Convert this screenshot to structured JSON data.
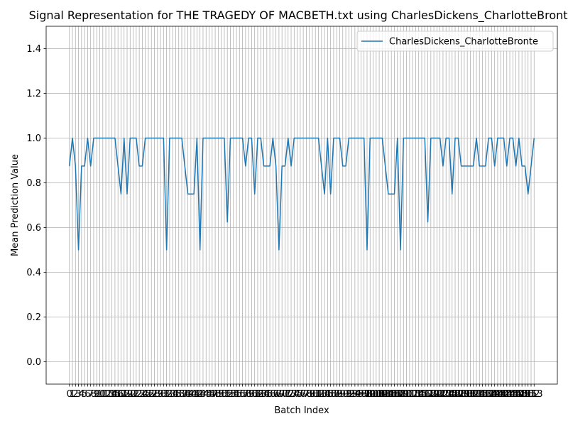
{
  "chart_data": {
    "type": "line",
    "title": "Signal Representation for THE TRAGEDY OF MACBETH.txt using CharlesDickens_CharlotteBronte",
    "xlabel": "Batch Index",
    "ylabel": "Mean Prediction Value",
    "x": [
      0,
      1,
      2,
      3,
      4,
      5,
      6,
      7,
      8,
      9,
      10,
      11,
      12,
      13,
      14,
      15,
      16,
      17,
      18,
      19,
      20,
      21,
      22,
      23,
      24,
      25,
      26,
      27,
      28,
      29,
      30,
      31,
      32,
      33,
      34,
      35,
      36,
      37,
      38,
      39,
      40,
      41,
      42,
      43,
      44,
      45,
      46,
      47,
      48,
      49,
      50,
      51,
      52,
      53,
      54,
      55,
      56,
      57,
      58,
      59,
      60,
      61,
      62,
      63,
      64,
      65,
      66,
      67,
      68,
      69,
      70,
      71,
      72,
      73,
      74,
      75,
      76,
      77,
      78,
      79,
      80,
      81,
      82,
      83,
      84,
      85,
      86,
      87,
      88,
      89,
      90,
      91,
      92,
      93,
      94,
      95,
      96,
      97,
      98,
      99,
      100,
      101,
      102,
      103,
      104,
      105,
      106,
      107,
      108,
      109,
      110,
      111,
      112,
      113,
      114,
      115,
      116,
      117,
      118,
      119,
      120,
      121,
      122,
      123,
      124,
      125,
      126,
      127,
      128,
      129,
      130,
      131,
      132,
      133,
      134,
      135,
      136,
      137,
      138,
      139,
      140,
      141,
      142,
      143,
      144,
      145,
      146,
      147,
      148,
      149,
      150,
      151,
      152,
      153
    ],
    "series": [
      {
        "name": "CharlesDickens_CharlotteBronte",
        "color": "#1f77b4",
        "values": [
          0.875,
          1,
          0.875,
          0.5,
          0.875,
          0.875,
          1,
          0.875,
          1,
          1,
          1,
          1,
          1,
          1,
          1,
          1,
          0.875,
          0.75,
          1,
          0.75,
          1,
          1,
          1,
          0.875,
          0.875,
          1,
          1,
          1,
          1,
          1,
          1,
          1,
          0.5,
          1,
          1,
          1,
          1,
          1,
          0.875,
          0.75,
          0.75,
          0.75,
          1,
          0.5,
          1,
          1,
          1,
          1,
          1,
          1,
          1,
          1,
          0.625,
          1,
          1,
          1,
          1,
          1,
          0.875,
          1,
          1,
          0.75,
          1,
          1,
          0.875,
          0.875,
          0.875,
          1,
          0.875,
          0.5,
          0.875,
          0.875,
          1,
          0.875,
          1,
          1,
          1,
          1,
          1,
          1,
          1,
          1,
          1,
          0.875,
          0.75,
          1,
          0.75,
          1,
          1,
          1,
          0.875,
          0.875,
          1,
          1,
          1,
          1,
          1,
          1,
          0.5,
          1,
          1,
          1,
          1,
          1,
          0.875,
          0.75,
          0.75,
          0.75,
          1,
          0.5,
          1,
          1,
          1,
          1,
          1,
          1,
          1,
          1,
          0.625,
          1,
          1,
          1,
          1,
          0.875,
          1,
          1,
          0.75,
          1,
          1,
          0.875,
          0.875,
          0.875,
          0.875,
          0.875,
          1,
          0.875,
          0.875,
          0.875,
          1,
          1,
          0.875,
          1,
          1,
          1,
          0.875,
          1,
          1,
          0.875,
          1,
          0.875,
          0.875,
          0.75,
          0.875,
          1
        ]
      }
    ],
    "xlim": [
      -7.65,
      160.65
    ],
    "xticks": [
      0,
      1,
      2,
      3,
      4,
      5,
      6,
      7,
      8,
      9,
      10,
      11,
      12,
      13,
      14,
      15,
      16,
      17,
      18,
      19,
      20,
      21,
      22,
      23,
      24,
      25,
      26,
      27,
      28,
      29,
      30,
      31,
      32,
      33,
      34,
      35,
      36,
      37,
      38,
      39,
      40,
      41,
      42,
      43,
      44,
      45,
      46,
      47,
      48,
      49,
      50,
      51,
      52,
      53,
      54,
      55,
      56,
      57,
      58,
      59,
      60,
      61,
      62,
      63,
      64,
      65,
      66,
      67,
      68,
      69,
      70,
      71,
      72,
      73,
      74,
      75,
      76,
      77,
      78,
      79,
      80,
      81,
      82,
      83,
      84,
      85,
      86,
      87,
      88,
      89,
      90,
      91,
      92,
      93,
      94,
      95,
      96,
      97,
      98,
      99,
      100,
      101,
      102,
      103,
      104,
      105,
      106,
      107,
      108,
      109,
      110,
      111,
      112,
      113,
      114,
      115,
      116,
      117,
      118,
      119,
      120,
      121,
      122,
      123,
      124,
      125,
      126,
      127,
      128,
      129,
      130,
      131,
      132,
      133,
      134,
      135,
      136,
      137,
      138,
      139,
      140,
      141,
      142,
      143,
      144,
      145,
      146,
      147,
      148,
      149,
      150,
      151,
      152,
      153
    ],
    "ylim": [
      -0.1,
      1.5
    ],
    "yticks": [
      {
        "value": 0,
        "label": "0.0"
      },
      0.2,
      0.4,
      0.6,
      0.8,
      {
        "value": 1,
        "label": "1.0"
      },
      1.2,
      1.4
    ],
    "grid": true,
    "legend": "upper right"
  }
}
